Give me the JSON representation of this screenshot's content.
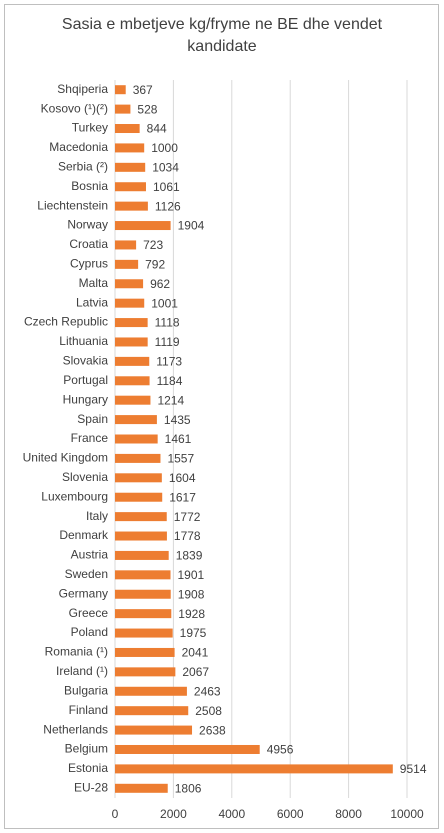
{
  "chart_data": {
    "type": "hbar",
    "title": "Sasia e mbetjeve kg/fryme ne BE dhe vendet kandidate",
    "categories": [
      "Shqiperia",
      "Kosovo (¹)(²)",
      "Turkey",
      "Macedonia",
      "Serbia (²)",
      "Bosnia",
      "Liechtenstein",
      "Norway",
      "Croatia",
      "Cyprus",
      "Malta",
      "Latvia",
      "Czech Republic",
      "Lithuania",
      "Slovakia",
      "Portugal",
      "Hungary",
      "Spain",
      "France",
      "United Kingdom",
      "Slovenia",
      "Luxembourg",
      "Italy",
      "Denmark",
      "Austria",
      "Sweden",
      "Germany",
      "Greece",
      "Poland",
      "Romania (¹)",
      "Ireland (¹)",
      "Bulgaria",
      "Finland",
      "Netherlands",
      "Belgium",
      "Estonia",
      "EU-28"
    ],
    "values": [
      367,
      528,
      844,
      1000,
      1034,
      1061,
      1126,
      1904,
      723,
      792,
      962,
      1001,
      1118,
      1119,
      1173,
      1184,
      1214,
      1435,
      1461,
      1557,
      1604,
      1617,
      1772,
      1778,
      1839,
      1901,
      1908,
      1928,
      1975,
      2041,
      2067,
      2463,
      2508,
      2638,
      4956,
      9514,
      1806
    ],
    "color": "#ed7d31",
    "xlim": [
      0,
      10800
    ],
    "xticks": [
      0,
      2000,
      4000,
      6000,
      8000,
      10000
    ],
    "grid": true
  }
}
